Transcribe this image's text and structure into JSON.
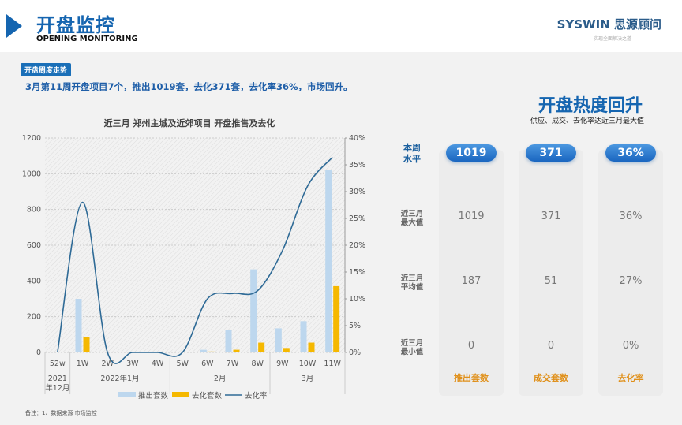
{
  "header": {
    "title": "开盘监控",
    "subtitle": "OPENING MONITORING",
    "logo": "SYSWIN 思源顾问",
    "logo_sub": "实现全面解决之道"
  },
  "tag": "开盘周度走势",
  "summary": "3月第11周开盘项目7个，推出1019套，去化371套，去化率36%，市场回升。",
  "right": {
    "title": "开盘热度回升",
    "subtitle": "供应、成交、去化率达近三月最大值",
    "row_labels": [
      [
        "本周",
        "水平"
      ],
      [
        "近三月",
        "最大值"
      ],
      [
        "近三月",
        "平均值"
      ],
      [
        "近三月",
        "最小值"
      ]
    ],
    "columns": [
      {
        "name": "推出套数",
        "current": "1019",
        "max": "1019",
        "avg": "187",
        "min": "0"
      },
      {
        "name": "成交套数",
        "current": "371",
        "max": "371",
        "avg": "51",
        "min": "0"
      },
      {
        "name": "去化率",
        "current": "36%",
        "max": "36%",
        "avg": "27%",
        "min": "0%"
      }
    ]
  },
  "note": "备注：1、数据来源 市场监控",
  "chart_data": {
    "type": "bar+line",
    "title": "近三月  郑州主城及近郊项目  开盘推售及去化",
    "categories": [
      "52w",
      "1W",
      "2W",
      "3W",
      "4W",
      "5W",
      "6W",
      "7W",
      "8W",
      "9W",
      "10W",
      "11W"
    ],
    "groups": [
      {
        "label": "2021\n年12月",
        "span": 1
      },
      {
        "label": "2022年1月",
        "span": 4
      },
      {
        "label": "2月",
        "span": 4
      },
      {
        "label": "3月",
        "span": 3
      }
    ],
    "series": [
      {
        "name": "推出套数",
        "type": "bar",
        "axis": "left",
        "color": "#bdd7ee",
        "values": [
          0,
          300,
          0,
          0,
          0,
          0,
          15,
          125,
          465,
          135,
          175,
          1019
        ]
      },
      {
        "name": "去化套数",
        "type": "bar",
        "axis": "left",
        "color": "#f5b800",
        "values": [
          0,
          85,
          0,
          0,
          0,
          0,
          5,
          15,
          55,
          25,
          55,
          371
        ]
      },
      {
        "name": "去化率",
        "type": "line",
        "axis": "right",
        "color": "#2e6a96",
        "values": [
          0,
          28,
          0,
          0,
          0,
          0,
          10,
          11,
          11.5,
          19,
          31,
          36.4
        ]
      }
    ],
    "ylim_left": [
      0,
      1200
    ],
    "yticks_left": [
      "0",
      "200",
      "400",
      "600",
      "800",
      "1000",
      "1200"
    ],
    "ylim_right": [
      0,
      40
    ],
    "yticks_right": [
      "0%",
      "5%",
      "10%",
      "15%",
      "20%",
      "25%",
      "30%",
      "35%",
      "40%"
    ],
    "grid": true,
    "legend": "bottom"
  }
}
